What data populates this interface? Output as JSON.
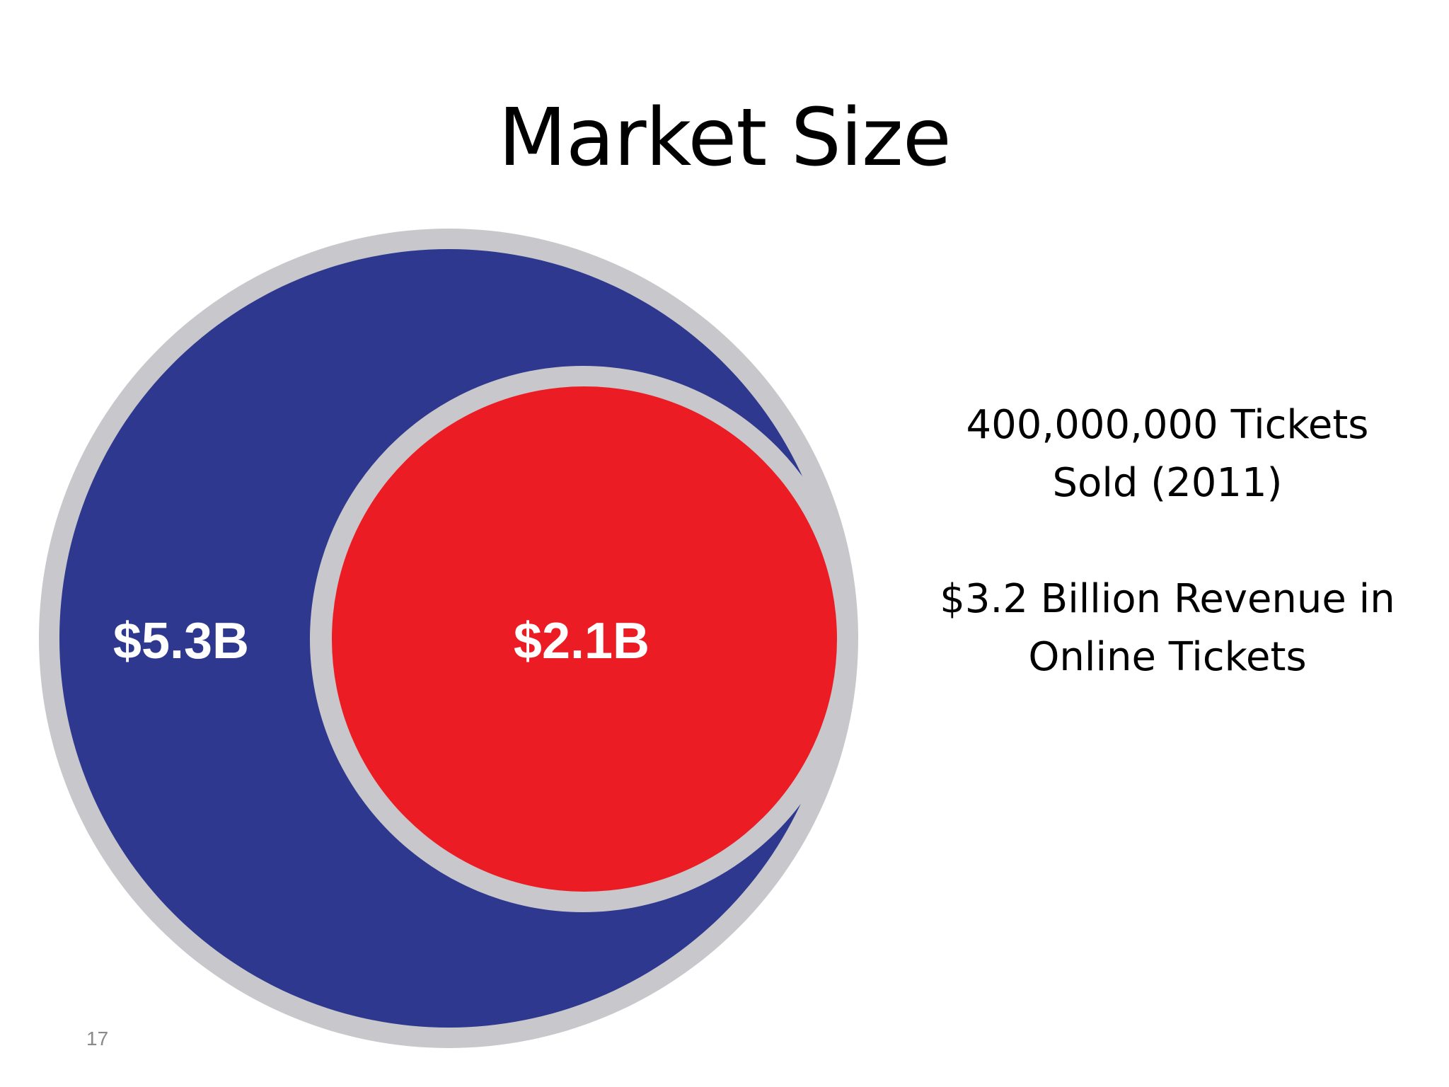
{
  "slide": {
    "title": "Market Size",
    "page_number": "17"
  },
  "diagram": {
    "outer_label": "$5.3B",
    "inner_label": "$2.1B",
    "colors": {
      "outer_fill": "#2d388e",
      "inner_fill": "#ec1c24",
      "ring": "#c8c8cc"
    }
  },
  "stats": {
    "tickets_line1": "400,000,000 Tickets",
    "tickets_line2": "Sold (2011)",
    "revenue_line1": "$3.2 Billion Revenue in",
    "revenue_line2": "Online Tickets"
  }
}
